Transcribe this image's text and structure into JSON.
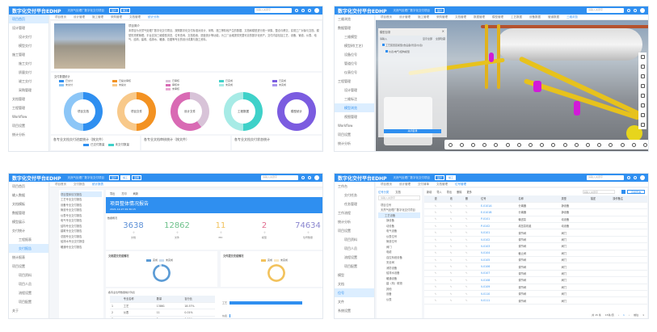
{
  "app": {
    "title": "数字化交付平台EDHP",
    "project": "天然气处理厂数字化交付项目",
    "tags": [
      "设计",
      "施工",
      "运维"
    ],
    "search_placeholder": "请输入关键字",
    "user": "admin"
  },
  "colors": {
    "brand": "#2f8ff0",
    "blue": "#2f8ff0",
    "orange": "#f39222",
    "pink": "#d96ab4",
    "teal": "#3fd1c9",
    "purple": "#7b5ce0"
  },
  "p1": {
    "sidebar": [
      "项目首页",
      "设计管理",
      "设计交付",
      "模型交付",
      "施工管理",
      "施工交付",
      "质量交付",
      "竣工交付",
      "采购管理",
      "文档管理",
      "工程管理",
      "Workflow",
      "项目设置",
      "统计分析"
    ],
    "tabs": [
      "项目首页",
      "设计管理",
      "施工管理",
      "采购管理",
      "文档管理",
      "统计分析"
    ],
    "intro_title": "项目简介",
    "intro_text": "本项目为天然气处理厂数字化交付项目，按照数字化交付标准对设计、采购、施工等阶段产生的数据、文档和模型进行统一采集、整合与移交，实现工厂对象与文档、模型的关联管理。平台支持三维模型浏览、位号查询、文档检索、进度统计等功能，为工厂运维提供完整可靠的数字化资产。交付内容包括工艺、设备、管道、仪表、电气、结构、建筑、给排水、暖通、总图等专业的设计成果与施工资料。",
    "stats_title": "交付数据统计",
    "donuts": [
      {
        "label": "项目文档",
        "legend": [
          "已交付",
          "未交付"
        ],
        "colors": [
          "#2f8ff0",
          "#8cc6f7"
        ],
        "share": 0.5
      },
      {
        "label": "项目文件",
        "legend": [
          "已提交审核",
          "未提交"
        ],
        "colors": [
          "#f39222",
          "#f8c98a"
        ],
        "share": 0.5
      },
      {
        "label": "设计文件",
        "legend": [
          "已审核",
          "审核中",
          "未审核"
        ],
        "colors": [
          "#d8c3d8",
          "#d96ab4",
          "#e7a8d3"
        ],
        "share": 0.4
      },
      {
        "label": "工程数据",
        "legend": [
          "已完成",
          "未完成"
        ],
        "colors": [
          "#3fd1c9",
          "#a7ebe6"
        ],
        "share": 0.5
      },
      {
        "label": "模型统计",
        "legend": [
          "已完成",
          "未完成"
        ],
        "colors": [
          "#7b5ce0",
          "#a995ec"
        ],
        "share": 1.0
      }
    ],
    "bottom": [
      "各专业文档交付进度统计（按文件）",
      "各专业文档审核统计（按文件）",
      "各专业文档交付状态统计"
    ],
    "bottom_legend": [
      "已交付数量",
      "未交付数量"
    ]
  },
  "p2": {
    "sidebar": [
      "三维浏览",
      "数据管理",
      "三维模型",
      "模型树(工艺)",
      "设备位号",
      "管道位号",
      "仪表位号",
      "工程管理",
      "设计管理",
      "三维标注",
      "模型浏览",
      "视图管理",
      "Workflow",
      "项目设置",
      "统计分析"
    ],
    "tabs": [
      "项目首页",
      "设计管理",
      "施工管理",
      "采购管理",
      "文档管理",
      "数据管理",
      "模型管理",
      "工艺数据",
      "设备数据",
      "管道数据",
      "三维浏览"
    ],
    "dialog": {
      "title": "模型目录",
      "search": "请输入",
      "options": [
        "显示全部",
        "全部隐藏"
      ],
      "items": [
        "工艺装置区模型(含设备/管道/仪表)",
        "仪表/电气/结构模型"
      ],
      "button": "关闭目录"
    }
  },
  "p3": {
    "sidebar": [
      "项目首页",
      "输入数据",
      "文档模板",
      "数据管理",
      "模型展示",
      "交付统计",
      "工程报表",
      "交付报告",
      "统计报表",
      "项目设置",
      "项目资料",
      "项目人员",
      "流程设置",
      "项目配置",
      "关于"
    ],
    "tabs": [
      "项目首页",
      "交付报告",
      "统计报表"
    ],
    "tree": [
      "项目整体情况报告",
      "工艺专业交付报告",
      "设备专业交付报告",
      "管道专业交付报告",
      "仪表专业交付报告",
      "电气专业交付报告",
      "结构专业交付报告",
      "建筑专业交付报告",
      "总图专业交付报告",
      "给排水专业交付报告",
      "暖通专业交付报告"
    ],
    "toolbar": [
      "导出",
      "打印",
      "刷新"
    ],
    "report_title": "项目整体情况报告",
    "report_date": "2021-12-27 09:30:15",
    "overview_title": "数据概况",
    "stats": [
      {
        "value": "3638",
        "unit": "个",
        "label": "文档",
        "color": "#5b8fd6"
      },
      {
        "value": "12862",
        "unit": "个",
        "label": "文件",
        "color": "#6cc08a"
      },
      {
        "value": "11",
        "unit": "个",
        "label": "PID",
        "color": "#f2c25c"
      },
      {
        "value": "2",
        "unit": "个",
        "label": "模型",
        "color": "#e06c8e"
      },
      {
        "value": "74634",
        "unit": "个",
        "label": "位号数量",
        "color": "#8a86cf"
      }
    ],
    "chart1": {
      "title": "文档提交完成情况",
      "legend": [
        "完成",
        "未完成"
      ],
      "completed_share": 0.95
    },
    "chart2": {
      "title": "文件提交完成情况",
      "legend": [
        "完成",
        "未完成"
      ],
      "completed_share": 1.0
    },
    "table_title": "各专业位号数量统计列表",
    "table_headers": [
      "",
      "专业名称",
      "数量",
      "百分比"
    ],
    "table_rows": [
      [
        "1",
        "工艺",
        "13861",
        "18.57%"
      ],
      [
        "2",
        "仪表",
        "11",
        "0.01%"
      ],
      [
        "3",
        "管道",
        "2",
        "0.00%"
      ]
    ],
    "bar_labels": [
      "工艺",
      "仪表"
    ],
    "bar_values": [
      13861,
      11
    ]
  },
  "p4": {
    "sidebar": [
      "工作台",
      "交付任务",
      "任务管理",
      "工作流程",
      "统计分析",
      "项目设置",
      "项目资料",
      "项目人员",
      "流程设置",
      "项目配置",
      "模型",
      "文档",
      "位号",
      "文件",
      "系统设置"
    ],
    "tabs": [
      "项目首页",
      "设计管理",
      "交付清单",
      "文档管理",
      "位号管理"
    ],
    "tree_tabs": [
      "位号分类",
      "文档"
    ],
    "tree_search": "请输入关键字",
    "tree": [
      "项目位号",
      "天然气处理厂数字化交付项目",
      "工艺设备",
      "静设备",
      "动设备",
      "电气设备",
      "仪表位号",
      "管道位号",
      "阀门",
      "电缆",
      "自控系统设备",
      "安全阀",
      "消防设备",
      "给排水设备",
      "暖通设备",
      "建（构）筑物",
      "其他",
      "设备",
      "仪表"
    ],
    "toolbar": [
      "新增",
      "导入",
      "导出",
      "删除",
      "更多"
    ],
    "filter_placeholder": "请输入关键字",
    "query_button": "高级查询",
    "headers": [
      "",
      "查",
      "改",
      "删",
      "位号",
      "名称",
      "类型",
      "描述",
      "操作备注"
    ],
    "rows": [
      [
        "E-0101A",
        "分离器",
        "静设备"
      ],
      [
        "E-0101B",
        "分离器",
        "静设备"
      ],
      [
        "P-0101",
        "输送泵",
        "动设备"
      ],
      [
        "P-0102",
        "增压泵机组",
        "动设备"
      ],
      [
        "V-0101",
        "调节阀",
        "阀门"
      ],
      [
        "V-0102",
        "调节阀",
        "阀门"
      ],
      [
        "V-0103",
        "调节阀",
        "阀门"
      ],
      [
        "V-0104",
        "截止阀",
        "阀门"
      ],
      [
        "V-0105",
        "调节阀",
        "阀门"
      ],
      [
        "V-0106",
        "调节阀",
        "阀门"
      ],
      [
        "V-0107",
        "调节阀",
        "阀门"
      ],
      [
        "V-0108",
        "调节阀",
        "阀门"
      ],
      [
        "V-0109",
        "调节阀",
        "阀门"
      ],
      [
        "V-0110",
        "调节阀",
        "阀门"
      ],
      [
        "V-0111",
        "调节阀",
        "阀门"
      ]
    ],
    "pagination": {
      "total": "共 15 条",
      "page_size": "15条/页",
      "page": "1",
      "goto": "前往",
      "page_input": "1"
    }
  }
}
